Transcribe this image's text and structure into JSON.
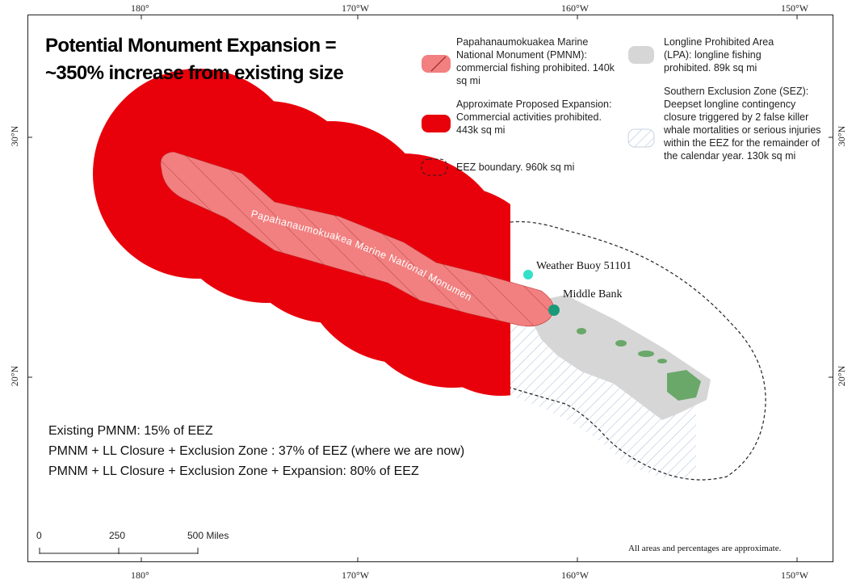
{
  "title": {
    "line1": "Potential Monument Expansion =",
    "line2": "~350% increase from existing size"
  },
  "graticule": {
    "lon_top": [
      "180°",
      "170°W",
      "160°W",
      "150°W"
    ],
    "lon_bottom": [
      "180°",
      "170°W",
      "160°W",
      "150°W"
    ],
    "lat_left": [
      "30°N",
      "20°N"
    ],
    "lat_right": [
      "30°N",
      "20°N"
    ]
  },
  "legend": {
    "pmnm": "Papahanaumokuakea Marine National Monument (PMNM): commercial fishing prohibited. 140k sq mi",
    "expansion": "Approximate Proposed Expansion: Commercial activities prohibited. 443k sq mi",
    "eez": "EEZ boundary. 960k sq mi",
    "lpa": "Longline Prohibited Area (LPA): longline fishing prohibited. 89k sq mi",
    "sez": "Southern Exclusion Zone (SEZ): Deepset longline contingency closure triggered by 2 false killer whale mortalities or serious injuries within the EEZ for the remainder of the calendar year. 130k sq mi"
  },
  "map_labels": {
    "monument": "Papahanaumokuakea Marine National Monument",
    "buoy": "Weather Buoy 51101",
    "middle_bank": "Middle Bank"
  },
  "stats": [
    "Existing PMNM: 15% of EEZ",
    "PMNM + LL Closure + Exclusion Zone : 37% of EEZ (where we are now)",
    "PMNM + LL Closure + Exclusion Zone + Expansion: 80% of EEZ"
  ],
  "scale_bar": {
    "labels": [
      "0",
      "250",
      "500 Miles"
    ]
  },
  "note": "All areas and percentages are approximate.",
  "colors": {
    "expansion": "#e8000b",
    "pmnm": "#f28080",
    "lpa": "#d6d6d6",
    "islands": "#6aa86a",
    "buoy": "#33e0c8",
    "middle_bank": "#1a9a78"
  }
}
